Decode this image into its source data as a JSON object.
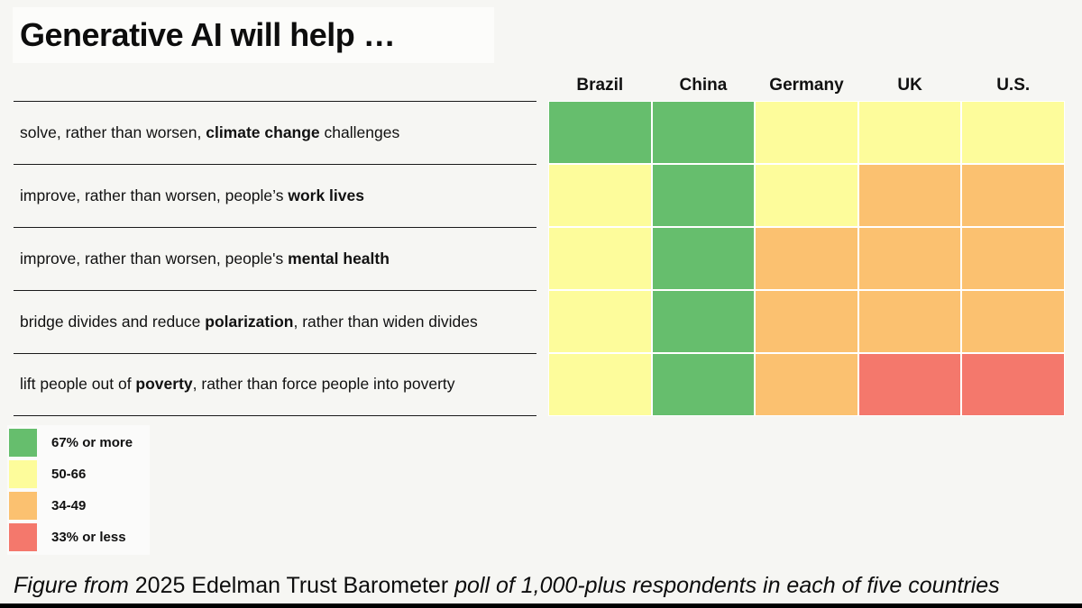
{
  "colors": {
    "page_background": "#f6f6f3",
    "grid_line": "#ffffff",
    "rule_line": "#1a1a1a",
    "bins": {
      "67+": "#66be6d",
      "50-66": "#fdfc9b",
      "34-49": "#fbc170",
      "33-": "#f4786c"
    }
  },
  "legend": {
    "items": [
      {
        "label": "67% or more",
        "bin": "67+"
      },
      {
        "label": "50-66",
        "bin": "50-66"
      },
      {
        "label": "34-49",
        "bin": "34-49"
      },
      {
        "label": "33% or less",
        "bin": "33-"
      }
    ]
  },
  "caption": {
    "parts": [
      {
        "text": "Figure from ",
        "italic": true
      },
      {
        "text": "2025 Edelman Trust Barometer",
        "italic": false
      },
      {
        "text": " poll of 1,000-plus respondents in each of five countries",
        "italic": true
      }
    ]
  },
  "chart_data": {
    "type": "heatmap",
    "title": "Generative AI will help …",
    "columns": [
      "Brazil",
      "China",
      "Germany",
      "UK",
      "U.S."
    ],
    "bin_labels": {
      "67+": "67% or more",
      "50-66": "50-66",
      "34-49": "34-49",
      "33-": "33% or less"
    },
    "rows": [
      {
        "label_parts": [
          {
            "text": "solve, rather than worsen, ",
            "bold": false
          },
          {
            "text": "climate change",
            "bold": true
          },
          {
            "text": " challenges",
            "bold": false
          }
        ],
        "values": [
          "67+",
          "67+",
          "50-66",
          "50-66",
          "50-66"
        ]
      },
      {
        "label_parts": [
          {
            "text": "improve, rather than worsen, people’s ",
            "bold": false
          },
          {
            "text": "work lives",
            "bold": true
          }
        ],
        "values": [
          "50-66",
          "67+",
          "50-66",
          "34-49",
          "34-49"
        ]
      },
      {
        "label_parts": [
          {
            "text": "improve, rather than worsen, people's ",
            "bold": false
          },
          {
            "text": "mental health",
            "bold": true
          }
        ],
        "values": [
          "50-66",
          "67+",
          "34-49",
          "34-49",
          "34-49"
        ]
      },
      {
        "label_parts": [
          {
            "text": "bridge divides and reduce ",
            "bold": false
          },
          {
            "text": "polarization",
            "bold": true
          },
          {
            "text": ", rather than widen divides",
            "bold": false
          }
        ],
        "values": [
          "50-66",
          "67+",
          "34-49",
          "34-49",
          "34-49"
        ]
      },
      {
        "label_parts": [
          {
            "text": "lift people out of ",
            "bold": false
          },
          {
            "text": "poverty",
            "bold": true
          },
          {
            "text": ", rather than force people into poverty",
            "bold": false
          }
        ],
        "values": [
          "50-66",
          "67+",
          "34-49",
          "33-",
          "33-"
        ]
      }
    ]
  }
}
